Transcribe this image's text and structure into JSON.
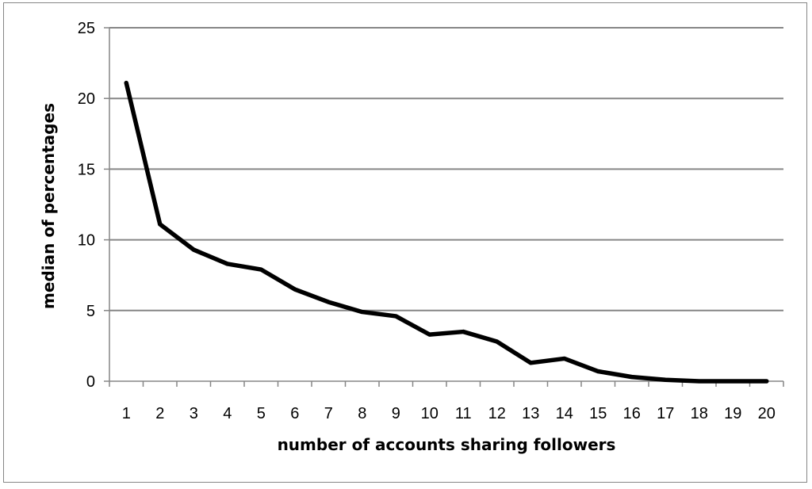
{
  "chart_data": {
    "type": "line",
    "title": "",
    "xlabel": "number of accounts sharing followers",
    "ylabel": "median of percentages",
    "categories": [
      "1",
      "2",
      "3",
      "4",
      "5",
      "6",
      "7",
      "8",
      "9",
      "10",
      "11",
      "12",
      "13",
      "14",
      "15",
      "16",
      "17",
      "18",
      "19",
      "20"
    ],
    "series": [
      {
        "values": [
          21.1,
          11.1,
          9.3,
          8.3,
          7.9,
          6.5,
          5.6,
          4.9,
          4.6,
          3.3,
          3.5,
          2.8,
          1.3,
          1.6,
          0.7,
          0.3,
          0.1,
          0.0,
          0.0,
          0.0
        ]
      }
    ],
    "ylim": [
      0,
      25
    ],
    "yticks": [
      0,
      5,
      10,
      15,
      20,
      25
    ],
    "grid": true,
    "legend": "none",
    "line_color": "#000000",
    "grid_color": "#868686"
  }
}
